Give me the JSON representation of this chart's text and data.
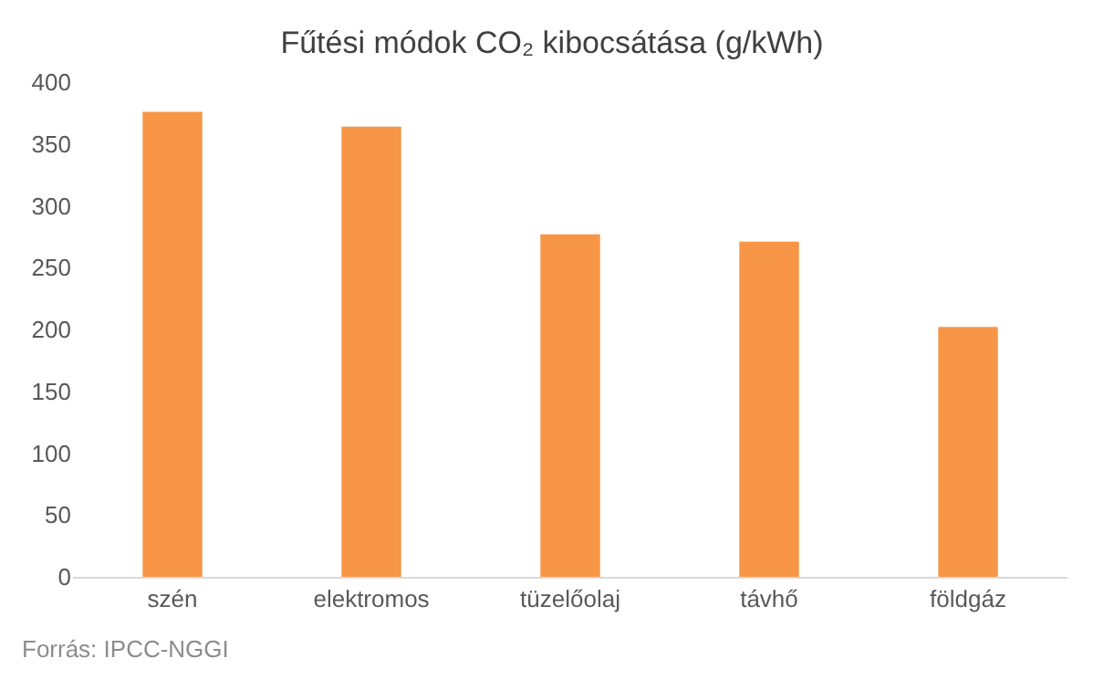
{
  "chart_data": {
    "type": "bar",
    "title": "Fűtési módok CO₂ kibocsátása (g/kWh)",
    "categories": [
      "szén",
      "elektromos",
      "tüzelőolaj",
      "távhő",
      "földgáz"
    ],
    "values": [
      376,
      364,
      277,
      271,
      202
    ],
    "color": "#f79646",
    "ylim": [
      0,
      400
    ],
    "yticks": [
      0,
      50,
      100,
      150,
      200,
      250,
      300,
      350,
      400
    ],
    "grid": false,
    "annotations": [
      "Forrás: IPCC-NGGI"
    ]
  }
}
